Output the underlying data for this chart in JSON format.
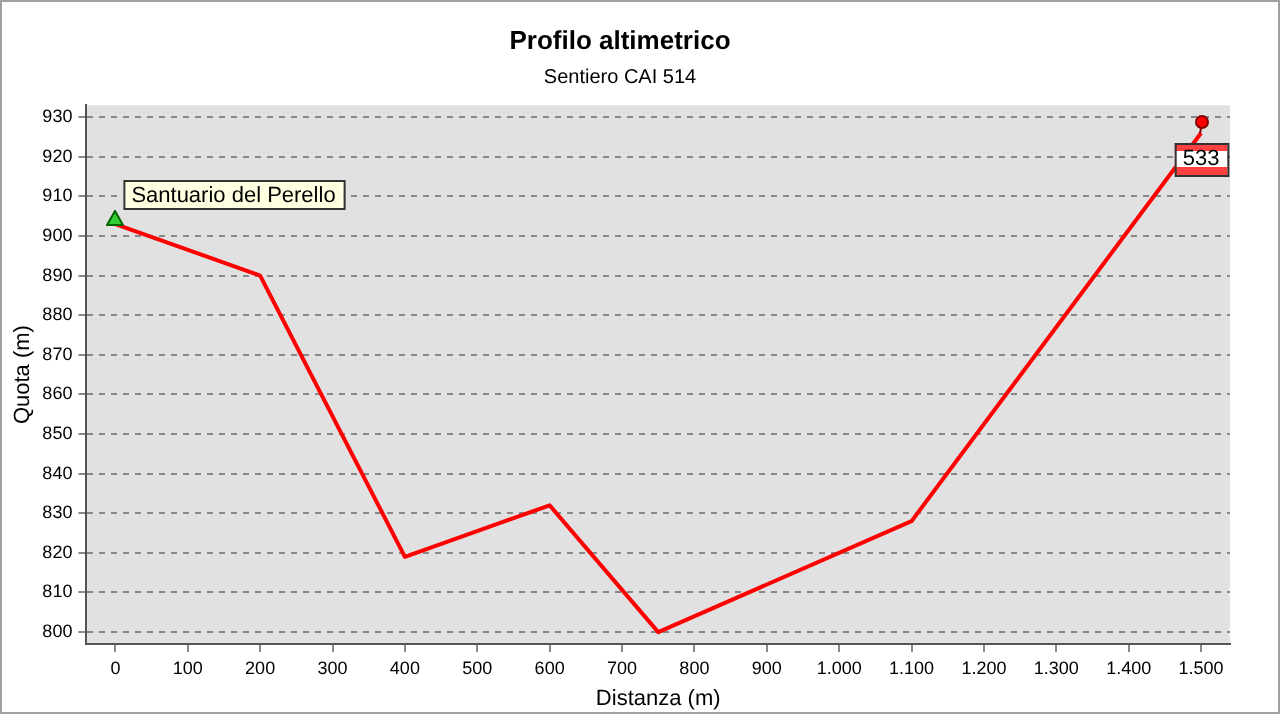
{
  "chart_data": {
    "type": "line",
    "title": "Profilo altimetrico",
    "subtitle": "Sentiero CAI 514",
    "xlabel": "Distanza (m)",
    "ylabel": "Quota (m)",
    "x": [
      0,
      200,
      400,
      600,
      750,
      1100,
      1500
    ],
    "series": [
      {
        "color": "#ff0000",
        "values": [
          903,
          890,
          819,
          832,
          800,
          828,
          926
        ]
      }
    ],
    "xlim": [
      -40,
      1540
    ],
    "xticks": [
      0,
      100,
      200,
      300,
      400,
      500,
      600,
      700,
      800,
      900,
      {
        "value": 1000,
        "label": "1.000"
      },
      {
        "value": 1100,
        "label": "1.100"
      },
      {
        "value": 1200,
        "label": "1.200"
      },
      {
        "value": 1300,
        "label": "1.300"
      },
      {
        "value": 1400,
        "label": "1.400"
      },
      {
        "value": 1500,
        "label": "1.500"
      }
    ],
    "ylim": [
      797,
      933
    ],
    "yticks": [
      800,
      810,
      820,
      830,
      840,
      850,
      860,
      870,
      880,
      890,
      900,
      910,
      920,
      930
    ],
    "grid": "y",
    "legend": false,
    "marker": "none",
    "line_style": "solid",
    "annotations": [
      {
        "text": "Santuario del Perello",
        "x": 0,
        "y": 903
      },
      {
        "text": "533",
        "x": 1500,
        "y": 926
      }
    ]
  }
}
